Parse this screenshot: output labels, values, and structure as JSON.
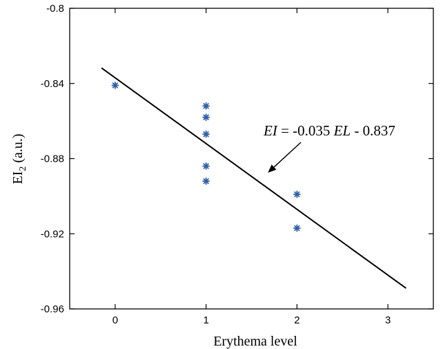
{
  "chart_data": {
    "type": "scatter",
    "title": "",
    "xlabel": "Erythema level",
    "ylabel": {
      "main": "EI",
      "subscript": "2",
      "unit": " (a.u.)"
    },
    "xlim": [
      -0.5,
      3.5
    ],
    "ylim": [
      -0.96,
      -0.8
    ],
    "xticks": [
      0,
      1,
      2,
      3
    ],
    "xtick_labels": [
      "0",
      "1",
      "2",
      "3"
    ],
    "yticks": [
      -0.96,
      -0.92,
      -0.88,
      -0.84,
      -0.8
    ],
    "ytick_labels": [
      "-0.96",
      "-0.92",
      "-0.88",
      "-0.84",
      "-0.8"
    ],
    "grid": false,
    "marker_color": "#2f5fa8",
    "points": [
      {
        "x": 0,
        "y": -0.841
      },
      {
        "x": 1,
        "y": -0.852
      },
      {
        "x": 1,
        "y": -0.858
      },
      {
        "x": 1,
        "y": -0.867
      },
      {
        "x": 1,
        "y": -0.884
      },
      {
        "x": 1,
        "y": -0.892
      },
      {
        "x": 2,
        "y": -0.899
      },
      {
        "x": 2,
        "y": -0.917
      }
    ],
    "fit_line": {
      "slope": -0.035,
      "intercept": -0.837,
      "x_range": [
        -0.15,
        3.2
      ]
    },
    "annotation": {
      "parts": [
        {
          "text": "EI",
          "italic": true
        },
        {
          "text": " = -0.035 ",
          "italic": false
        },
        {
          "text": "EL",
          "italic": true
        },
        {
          "text": " - 0.837",
          "italic": false
        }
      ],
      "arrow_target": {
        "x": 1.68,
        "y": -0.8875
      }
    }
  }
}
